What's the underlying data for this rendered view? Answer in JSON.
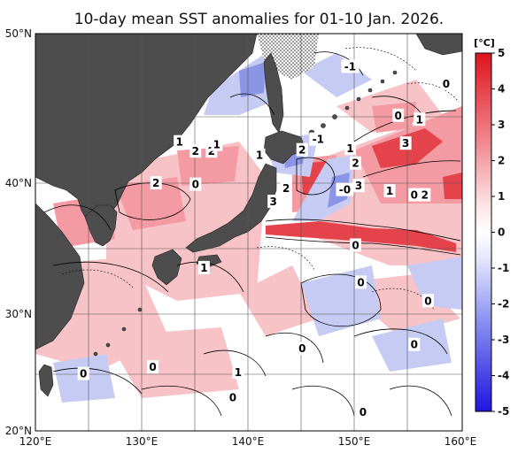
{
  "title": "10-day mean SST anomalies for 01-10 Jan. 2026.",
  "axes": {
    "x_ticks": [
      "120°E",
      "130°E",
      "140°E",
      "150°E",
      "160°E"
    ],
    "y_ticks": [
      "50°N",
      "40°N",
      "30°N",
      "20°N"
    ],
    "lon_range": [
      120,
      160
    ],
    "lat_range": [
      20,
      50
    ],
    "grid": true
  },
  "colorbar": {
    "unit": "[°C]",
    "ticks": [
      "5",
      "4",
      "3",
      "2",
      "1",
      "0",
      "-1",
      "-2",
      "-3",
      "-4",
      "-5"
    ],
    "range": [
      -5,
      5
    ],
    "colors": {
      "max": "#e0141e",
      "pos_mid": "#f08890",
      "pos_low": "#fbe2e4",
      "zero": "#ffffff",
      "neg_low": "#e2e4fb",
      "neg_mid": "#8890f0",
      "min": "#1e14e0"
    }
  },
  "colors": {
    "land": "#4d4d4d",
    "grid": "#555555",
    "warm_anomaly": "#f4a0a6",
    "strong_warm": "#e53d45",
    "cool_anomaly": "#aab4ec"
  },
  "contour_labels": [
    {
      "text": "-1",
      "lon": 149.5,
      "lat": 47.5
    },
    {
      "text": "0",
      "lon": 158.5,
      "lat": 46.2
    },
    {
      "text": "0",
      "lon": 154.0,
      "lat": 43.8
    },
    {
      "text": "1",
      "lon": 156.0,
      "lat": 43.5
    },
    {
      "text": "-1",
      "lon": 146.5,
      "lat": 42.0
    },
    {
      "text": "2",
      "lon": 145.0,
      "lat": 41.2
    },
    {
      "text": "1",
      "lon": 149.5,
      "lat": 41.3
    },
    {
      "text": "3",
      "lon": 154.7,
      "lat": 41.7
    },
    {
      "text": "2",
      "lon": 150.0,
      "lat": 40.2
    },
    {
      "text": "1",
      "lon": 141.0,
      "lat": 40.8
    },
    {
      "text": "1",
      "lon": 133.5,
      "lat": 41.8
    },
    {
      "text": "2",
      "lon": 135.0,
      "lat": 41.1
    },
    {
      "text": "2",
      "lon": 136.5,
      "lat": 41.1
    },
    {
      "text": "1",
      "lon": 137.0,
      "lat": 41.6
    },
    {
      "text": "2",
      "lon": 131.3,
      "lat": 38.7
    },
    {
      "text": "0",
      "lon": 135.0,
      "lat": 38.6
    },
    {
      "text": "2",
      "lon": 143.5,
      "lat": 38.3
    },
    {
      "text": "-0",
      "lon": 149.0,
      "lat": 38.2
    },
    {
      "text": "3",
      "lon": 150.3,
      "lat": 38.5
    },
    {
      "text": "1",
      "lon": 153.2,
      "lat": 38.1
    },
    {
      "text": "0",
      "lon": 155.5,
      "lat": 37.8
    },
    {
      "text": "2",
      "lon": 156.5,
      "lat": 37.8
    },
    {
      "text": "3",
      "lon": 142.3,
      "lat": 37.3
    },
    {
      "text": "0",
      "lon": 150.0,
      "lat": 34.0
    },
    {
      "text": "1",
      "lon": 135.8,
      "lat": 32.3
    },
    {
      "text": "0",
      "lon": 150.5,
      "lat": 31.2
    },
    {
      "text": "0",
      "lon": 156.8,
      "lat": 29.8
    },
    {
      "text": "0",
      "lon": 145.0,
      "lat": 26.2
    },
    {
      "text": "0",
      "lon": 155.5,
      "lat": 26.5
    },
    {
      "text": "0",
      "lon": 131.0,
      "lat": 24.8
    },
    {
      "text": "0",
      "lon": 124.5,
      "lat": 24.3
    },
    {
      "text": "1",
      "lon": 139.0,
      "lat": 24.4
    },
    {
      "text": "0",
      "lon": 138.5,
      "lat": 22.5
    },
    {
      "text": "0",
      "lon": 150.7,
      "lat": 21.4
    }
  ]
}
